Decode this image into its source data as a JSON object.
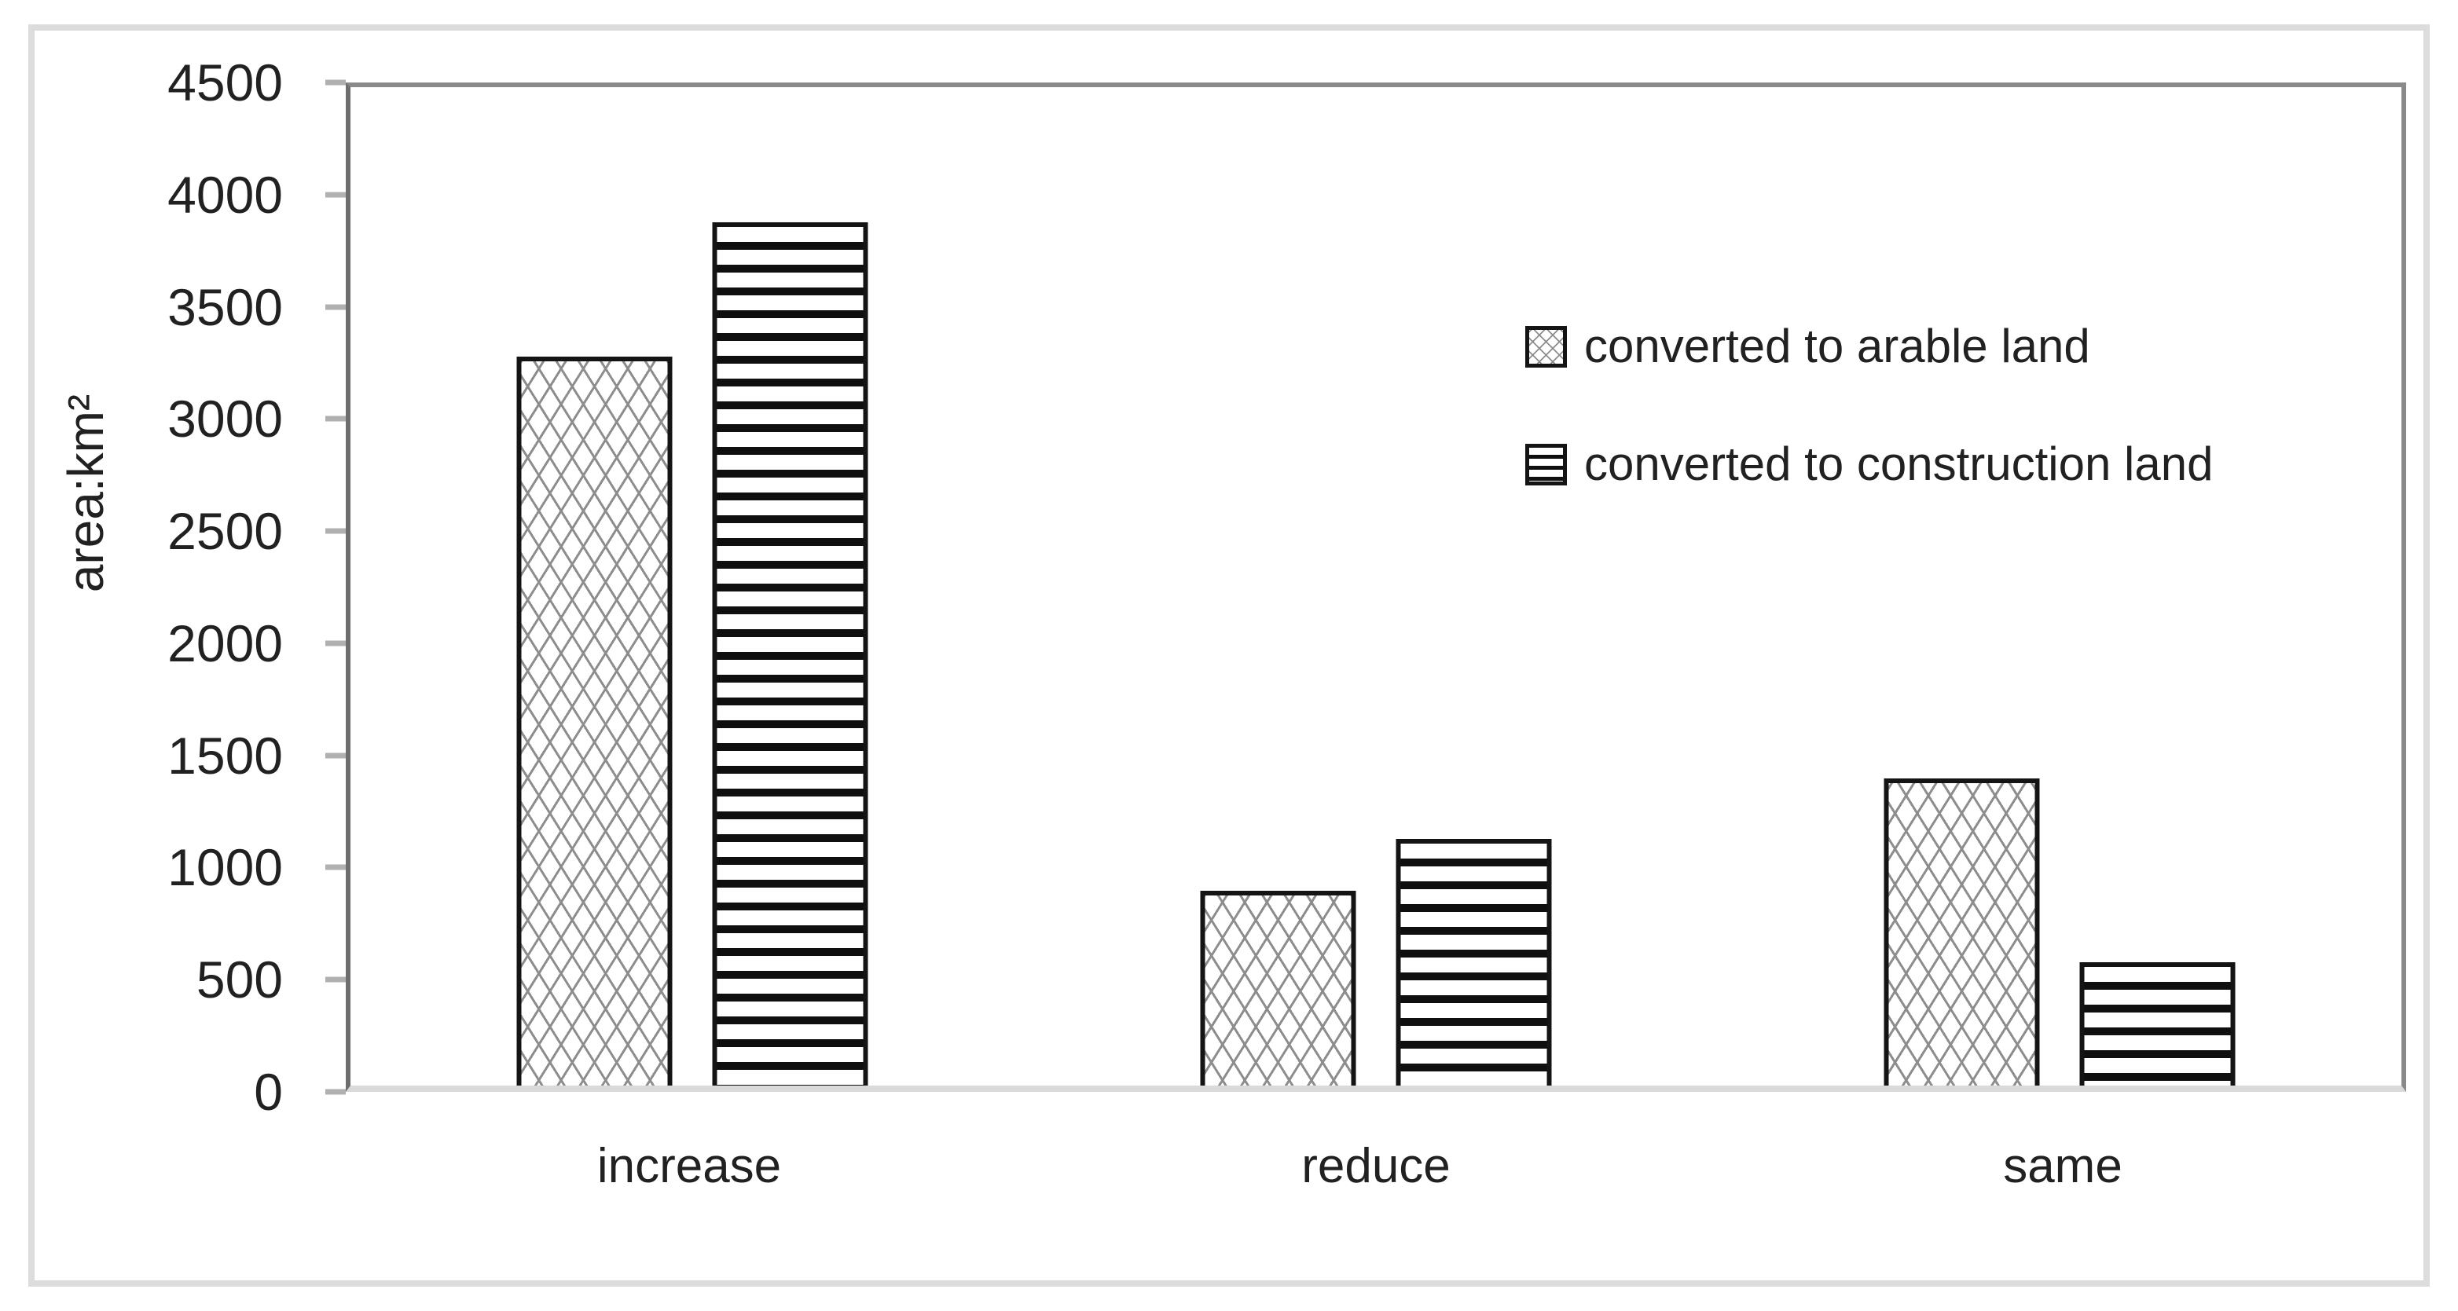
{
  "chart_data": {
    "type": "bar",
    "title": "",
    "categories": [
      "increase",
      "reduce",
      "same"
    ],
    "series": [
      {
        "name": "converted to arable land",
        "pattern": "crosshatch",
        "values": [
          3250,
          870,
          1370
        ]
      },
      {
        "name": "converted to construction land",
        "pattern": "hlines",
        "values": [
          3850,
          1100,
          550
        ]
      }
    ],
    "xlabel": "",
    "ylabel": "area:km²",
    "ylim": [
      0,
      4500
    ],
    "yticks": [
      0,
      500,
      1000,
      1500,
      2000,
      2500,
      3000,
      3500,
      4000,
      4500
    ],
    "grid": "off",
    "legend_position": "inside-top-right",
    "colors": {
      "bar_border": "#141414",
      "crosshatch_line": "#8d8d8d",
      "stripe": "#0f0f0f",
      "plot_border": "#8a8a8a",
      "baseline": "#d9d9d9",
      "tick_mark": "#b0b0b0",
      "outer_border": "#dcdcdc",
      "text": "#212121"
    }
  }
}
